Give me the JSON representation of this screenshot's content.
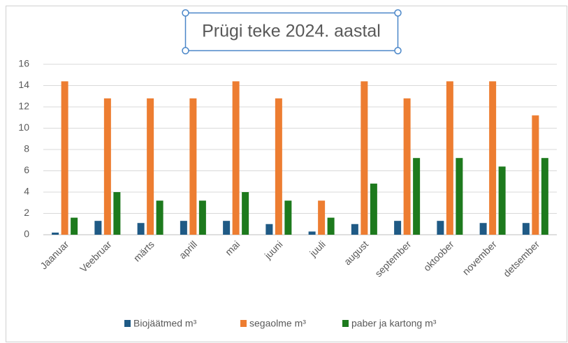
{
  "chart_data": {
    "type": "bar",
    "title": "Prügi teke 2024. aastal",
    "categories": [
      "Jaanuar",
      "Veebruar",
      "märts",
      "aprill",
      "mai",
      "juuni",
      "juuli",
      "august",
      "september",
      "oktoober",
      "november",
      "detsember"
    ],
    "series": [
      {
        "name": "Biojäätmed m³",
        "color": "#1f5a85",
        "values": [
          0.2,
          1.3,
          1.1,
          1.3,
          1.3,
          1.0,
          0.3,
          1.0,
          1.3,
          1.3,
          1.1,
          1.1
        ]
      },
      {
        "name": "segaolme m³",
        "color": "#ed7d31",
        "values": [
          14.4,
          12.8,
          12.8,
          12.8,
          14.4,
          12.8,
          3.2,
          14.4,
          12.8,
          14.4,
          14.4,
          11.2
        ]
      },
      {
        "name": "paber ja kartong m³",
        "color": "#1d7a1d",
        "values": [
          1.6,
          4.0,
          3.2,
          3.2,
          4.0,
          3.2,
          1.6,
          4.8,
          7.2,
          7.2,
          6.4,
          7.2
        ]
      }
    ],
    "ylim": [
      0,
      16
    ],
    "yticks": [
      0,
      2,
      4,
      6,
      8,
      10,
      12,
      14,
      16
    ],
    "grid": true,
    "legend": "bottom"
  }
}
